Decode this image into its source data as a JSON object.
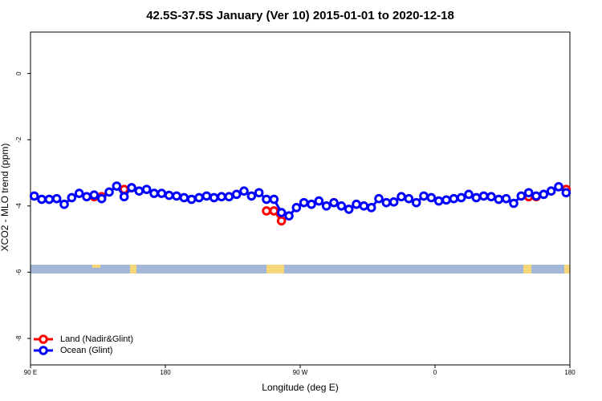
{
  "chart_data": {
    "type": "line",
    "title": "42.5S-37.5S January (Ver 10)   2015-01-01 to 2020-12-18",
    "x_label": "Longitude (deg E)",
    "y_label": "XCO2 - MLO trend (ppm)",
    "xlim": [
      90,
      450
    ],
    "xticks": [
      {
        "value": 90,
        "label": "90 E"
      },
      180,
      {
        "value": 270,
        "label": "90 W"
      },
      {
        "value": 360,
        "label": "0"
      },
      {
        "value": 450,
        "label": "180"
      },
      {
        "value": 450,
        "label": "180"
      }
    ],
    "ylim": [
      -8.8,
      1.25
    ],
    "yticks": [
      0,
      -2,
      -4,
      -6,
      -8
    ],
    "grid": false,
    "legend": "lower left",
    "x": [
      92.5,
      97.5,
      102.5,
      107.5,
      112.5,
      117.5,
      122.5,
      127.5,
      132.5,
      137.5,
      142.5,
      147.5,
      152.5,
      157.5,
      162.5,
      167.5,
      172.5,
      177.5,
      182.5,
      187.5,
      192.5,
      197.5,
      202.5,
      207.5,
      212.5,
      217.5,
      222.5,
      227.5,
      232.5,
      237.5,
      242.5,
      247.5,
      252.5,
      257.5,
      262.5,
      267.5,
      272.5,
      277.5,
      282.5,
      287.5,
      292.5,
      297.5,
      302.5,
      307.5,
      312.5,
      317.5,
      322.5,
      327.5,
      332.5,
      337.5,
      342.5,
      347.5,
      352.5,
      357.5,
      362.5,
      367.5,
      372.5,
      377.5,
      382.5,
      387.5,
      392.5,
      397.5,
      402.5,
      407.5,
      412.5,
      417.5,
      422.5,
      427.5,
      432.5,
      437.5,
      442.5,
      447.5
    ],
    "series": [
      {
        "name": "Land (Nadir&Glint)",
        "color": "#ff0000",
        "values": [
          null,
          null,
          null,
          null,
          null,
          null,
          null,
          null,
          -3.72,
          -3.72,
          null,
          null,
          -3.5,
          -3.45,
          null,
          null,
          null,
          null,
          null,
          null,
          null,
          null,
          null,
          null,
          null,
          null,
          null,
          null,
          null,
          null,
          null,
          -4.15,
          -4.15,
          -4.45,
          null,
          null,
          null,
          null,
          null,
          null,
          null,
          null,
          null,
          null,
          null,
          null,
          null,
          null,
          null,
          null,
          null,
          null,
          null,
          null,
          null,
          null,
          null,
          null,
          null,
          null,
          null,
          null,
          null,
          null,
          null,
          null,
          -3.72,
          -3.72,
          null,
          null,
          null,
          -3.5
        ]
      },
      {
        "name": "Ocean (Glint)",
        "color": "#0000ff",
        "values": [
          -3.7,
          -3.8,
          -3.8,
          -3.78,
          -3.95,
          -3.75,
          -3.62,
          -3.72,
          -3.67,
          -3.78,
          -3.58,
          -3.4,
          -3.72,
          -3.45,
          -3.55,
          -3.5,
          -3.62,
          -3.62,
          -3.68,
          -3.7,
          -3.75,
          -3.8,
          -3.75,
          -3.7,
          -3.75,
          -3.72,
          -3.72,
          -3.65,
          -3.55,
          -3.7,
          -3.6,
          -3.8,
          -3.8,
          -4.2,
          -4.3,
          -4.05,
          -3.9,
          -3.95,
          -3.85,
          -4.0,
          -3.9,
          -4.0,
          -4.1,
          -3.95,
          -4.0,
          -4.05,
          -3.78,
          -3.9,
          -3.88,
          -3.72,
          -3.78,
          -3.9,
          -3.7,
          -3.75,
          -3.85,
          -3.82,
          -3.78,
          -3.75,
          -3.65,
          -3.75,
          -3.7,
          -3.72,
          -3.8,
          -3.78,
          -3.92,
          -3.7,
          -3.6,
          -3.7,
          -3.65,
          -3.55,
          -3.42,
          -3.6
        ]
      }
    ]
  }
}
